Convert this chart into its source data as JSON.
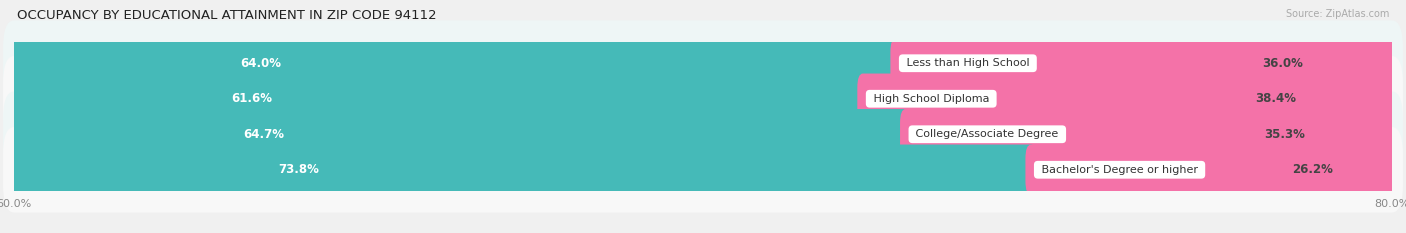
{
  "title": "OCCUPANCY BY EDUCATIONAL ATTAINMENT IN ZIP CODE 94112",
  "source": "Source: ZipAtlas.com",
  "categories": [
    "Less than High School",
    "High School Diploma",
    "College/Associate Degree",
    "Bachelor's Degree or higher"
  ],
  "owner_values": [
    64.0,
    61.6,
    64.7,
    73.8
  ],
  "renter_values": [
    36.0,
    38.4,
    35.3,
    26.2
  ],
  "owner_color": "#45bab8",
  "renter_color": "#f472a8",
  "renter_color_light": "#f8a0c8",
  "row_bg_even": "#eef6f6",
  "row_bg_odd": "#f8f8f8",
  "outer_bg": "#f0f0f0",
  "x_left_label": "60.0%",
  "x_right_label": "80.0%",
  "title_fontsize": 9.5,
  "source_fontsize": 7,
  "bar_label_fontsize": 8.5,
  "cat_label_fontsize": 8,
  "tick_fontsize": 8,
  "legend_fontsize": 8
}
